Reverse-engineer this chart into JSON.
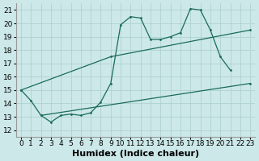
{
  "bg_color": "#cce8e8",
  "grid_color": "#aacece",
  "line_color": "#1a6b5a",
  "xlim": [
    -0.5,
    23.5
  ],
  "ylim": [
    11.5,
    21.5
  ],
  "yticks": [
    12,
    13,
    14,
    15,
    16,
    17,
    18,
    19,
    20,
    21
  ],
  "xticks": [
    0,
    1,
    2,
    3,
    4,
    5,
    6,
    7,
    8,
    9,
    10,
    11,
    12,
    13,
    14,
    15,
    16,
    17,
    18,
    19,
    20,
    21,
    22,
    23
  ],
  "line1_x": [
    0,
    1,
    2,
    3,
    4,
    5,
    6,
    7,
    8,
    9,
    10,
    11,
    12,
    13,
    14,
    15,
    16,
    17,
    18,
    19,
    20,
    21
  ],
  "line1_y": [
    15.0,
    14.2,
    13.1,
    12.6,
    13.1,
    13.2,
    13.1,
    13.3,
    14.1,
    15.5,
    19.9,
    20.5,
    20.4,
    18.8,
    18.8,
    19.0,
    19.3,
    21.1,
    21.0,
    19.5,
    17.5,
    16.5
  ],
  "line2_x": [
    0,
    9,
    23
  ],
  "line2_y": [
    15.0,
    17.5,
    19.5
  ],
  "line3_x": [
    2,
    23
  ],
  "line3_y": [
    13.1,
    15.5
  ],
  "xlabel": "Humidex (Indice chaleur)",
  "xlabel_fontsize": 8,
  "tick_fontsize": 6.5
}
